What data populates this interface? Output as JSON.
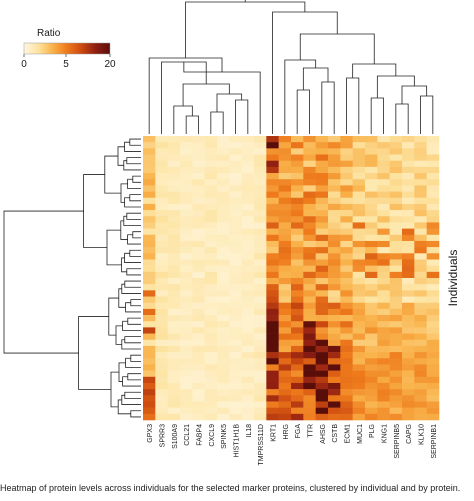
{
  "chart_data": {
    "type": "heatmap",
    "legend": {
      "title": "Ratio",
      "ticks": [
        0,
        5,
        20
      ],
      "colors": [
        "#fff7e0",
        "#fde3a0",
        "#f9b24a",
        "#ee7a1c",
        "#cc4a10",
        "#8e1e12",
        "#5a0e0a"
      ]
    },
    "columns": [
      "GPX3",
      "SPRR3",
      "S100A9",
      "CCL21",
      "FABP4",
      "CXCL9",
      "SPINK5",
      "HIST1H1B",
      "IL18",
      "TMPRSS11D",
      "KRT1",
      "HRG",
      "FGA",
      "TTR",
      "AHSG",
      "CSTB",
      "ECM1",
      "MUC1",
      "PLG",
      "KNG1",
      "SERPINB5",
      "CAPG",
      "KLK10",
      "SERPINB1"
    ],
    "ylabel": "Individuals",
    "caption": "Heatmap of protein levels across individuals for the selected marker proteins, clustered by individual and by protein."
  }
}
